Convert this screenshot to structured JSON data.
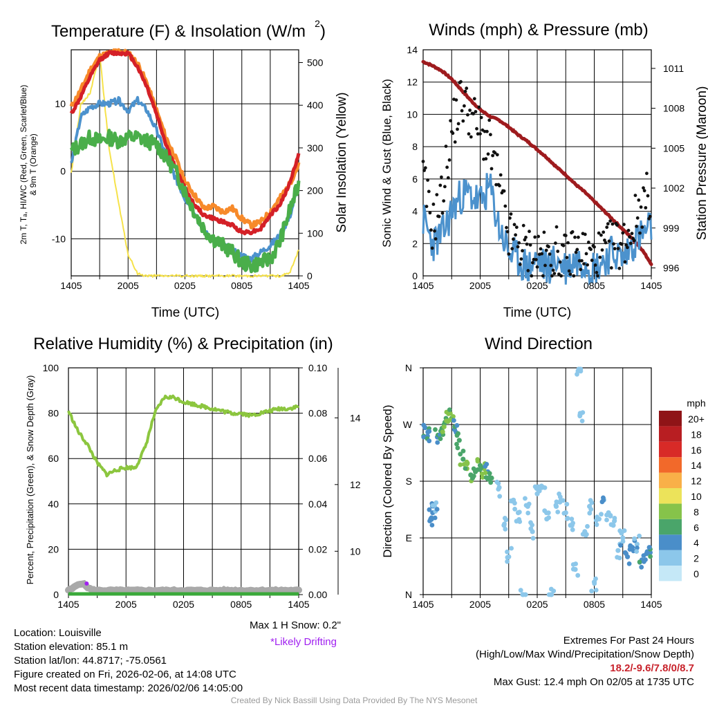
{
  "chart_data": [
    {
      "type": "line",
      "title": "Temperature (F) & Insolation (W/m",
      "title_superscript": "2",
      "title_suffix": ")",
      "xlabel": "Time (UTC)",
      "ylabel_left": "2m T, Tₐ, HI/WC (Red, Green, Scarlet/Blue)",
      "ylabel_left_line2": "& 9m T (Orange)",
      "ylabel_right": "Solar Insolation (Yellow)",
      "x_tick_labels": [
        "1405",
        "2005",
        "0205",
        "0805",
        "1405"
      ],
      "y_ticks": [
        -10,
        0,
        10
      ],
      "ylim": [
        -15.5,
        18
      ],
      "y_right_ticks": [
        0,
        100,
        200,
        300,
        400,
        500
      ],
      "y_right_lim": [
        0,
        530
      ],
      "x_hours": [
        0,
        1,
        2,
        3,
        4,
        5,
        6,
        7,
        8,
        9,
        10,
        11,
        12,
        13,
        14,
        15,
        16,
        17,
        18,
        19,
        20,
        21,
        22,
        23,
        24
      ],
      "series": [
        {
          "name": "9m T",
          "color": "#f78a2a",
          "values": [
            9.5,
            12,
            15,
            17,
            17.5,
            17.8,
            17.5,
            16,
            13,
            9,
            5,
            2,
            -1.5,
            -3.5,
            -5.5,
            -5.2,
            -6,
            -5.5,
            -7,
            -8,
            -7.5,
            -6,
            -4,
            -2,
            1
          ]
        },
        {
          "name": "2m T",
          "color": "#d42027",
          "values": [
            8.5,
            11,
            14,
            16.5,
            17.5,
            17.5,
            17.5,
            15.5,
            12.5,
            8.5,
            4,
            0.5,
            -2.5,
            -5,
            -6.5,
            -7,
            -7.5,
            -8,
            -9,
            -9,
            -8.5,
            -6.5,
            -5,
            -2,
            2.5
          ]
        },
        {
          "name": "Td",
          "color": "#4aae4a",
          "values": [
            3,
            4,
            5,
            4.5,
            5,
            4.5,
            5,
            5,
            4.5,
            4,
            2,
            0,
            -3,
            -6,
            -8.5,
            -10,
            -11,
            -12,
            -13.5,
            -14,
            -13.5,
            -13,
            -10.5,
            -6,
            -2
          ]
        },
        {
          "name": "HI/WC",
          "color": "#4c92cd",
          "values": [
            1,
            8,
            9.5,
            10,
            10,
            10.5,
            9,
            10.5,
            9,
            6,
            2.5,
            -1,
            -4,
            -6,
            -9,
            -10,
            -11,
            -11.5,
            -12.5,
            -13,
            -12,
            -11,
            -9.5,
            -7,
            -2
          ]
        },
        {
          "name": "Solar Insolation",
          "color": "#f6e24a",
          "axis": "right",
          "values": [
            240,
            400,
            430,
            520,
            300,
            170,
            50,
            5,
            0,
            0,
            0,
            0,
            0,
            0,
            0,
            0,
            0,
            0,
            0,
            0,
            0,
            0,
            0,
            5,
            60
          ]
        }
      ]
    },
    {
      "type": "line",
      "title": "Winds (mph) & Pressure (mb)",
      "xlabel": "Time (UTC)",
      "ylabel_left": "Sonic Wind & Gust (Blue, Black)",
      "ylabel_right": "Station Pressure (Maroon)",
      "x_tick_labels": [
        "1405",
        "2005",
        "0205",
        "0805",
        "1405"
      ],
      "y_ticks": [
        0,
        2,
        4,
        6,
        8,
        10,
        12,
        14
      ],
      "ylim": [
        0,
        14
      ],
      "y_right_ticks": [
        996,
        999,
        1002,
        1005,
        1008,
        1011
      ],
      "y_right_lim": [
        995.4,
        1012.4
      ],
      "x_hours": [
        0,
        1,
        2,
        3,
        4,
        5,
        6,
        7,
        8,
        9,
        10,
        11,
        12,
        13,
        14,
        15,
        16,
        17,
        18,
        19,
        20,
        21,
        22,
        23,
        24
      ],
      "series": [
        {
          "name": "Sonic Wind",
          "color": "#4c92cd",
          "values": [
            3.5,
            2,
            2.5,
            4,
            5,
            5,
            4.5,
            5.5,
            3,
            1.5,
            1,
            0.5,
            1,
            0.5,
            1,
            0.5,
            1,
            1,
            0.5,
            1,
            1.5,
            1,
            2,
            2.5,
            3
          ]
        },
        {
          "name": "Gust",
          "color": "#111111",
          "values": [
            6,
            3,
            5,
            9,
            11,
            10,
            9,
            8,
            5.5,
            2.5,
            2,
            1.5,
            1.5,
            1,
            1.5,
            1,
            1.5,
            1.5,
            1,
            1.5,
            2,
            2,
            3,
            4.5,
            5
          ]
        },
        {
          "name": "Station Pressure",
          "color": "#9e1b1e",
          "axis": "right",
          "values": [
            1011.5,
            1011.2,
            1010.8,
            1010.2,
            1009.4,
            1008.6,
            1007.9,
            1007.4,
            1007.1,
            1006.6,
            1006,
            1005.5,
            1004.9,
            1004.3,
            1003.6,
            1003,
            1002.3,
            1001.7,
            1001,
            1000.3,
            999.6,
            998.9,
            998.2,
            997.4,
            996.3
          ]
        }
      ]
    },
    {
      "type": "line",
      "title": "Relative Humidity (%) & Precipitation (in)",
      "ylabel_left": "Percent, Precipitation (Green), & Snow Depth (Gray)",
      "x_tick_labels": [
        "1405",
        "2005",
        "0205",
        "0805",
        "1405"
      ],
      "y_ticks": [
        0,
        20,
        40,
        60,
        80,
        100
      ],
      "ylim": [
        0,
        100
      ],
      "y_right_ticks": [
        "0.00",
        "0.02",
        "0.04",
        "0.06",
        "0.08",
        "0.10"
      ],
      "y_right_lim": [
        0,
        0.1
      ],
      "y_far_right_ticks": [
        10,
        12,
        14
      ],
      "x_hours": [
        0,
        1,
        2,
        3,
        4,
        5,
        6,
        7,
        8,
        9,
        10,
        11,
        12,
        13,
        14,
        15,
        16,
        17,
        18,
        19,
        20,
        21,
        22,
        23,
        24
      ],
      "series": [
        {
          "name": "Relative Humidity",
          "color": "#8cc63f",
          "values": [
            81,
            72,
            66,
            58,
            53,
            55,
            56,
            56,
            65,
            80,
            87,
            87,
            85,
            84,
            83,
            82,
            81,
            80,
            80,
            79,
            80,
            81,
            82,
            82,
            83
          ]
        },
        {
          "name": "Precipitation",
          "color": "#3aa93a",
          "values": [
            0,
            0,
            0,
            0,
            0,
            0,
            0,
            0,
            0,
            0,
            0,
            0,
            0,
            0,
            0,
            0,
            0,
            0,
            0,
            0,
            0,
            0,
            0,
            0,
            0
          ]
        },
        {
          "name": "Snow Depth",
          "color": "#a9a9a9",
          "values": [
            0,
            0,
            0,
            0,
            0,
            0,
            0,
            0,
            0,
            0,
            0,
            0,
            0,
            0,
            0,
            0,
            0,
            0,
            0,
            0,
            0,
            0,
            0,
            0,
            0
          ]
        }
      ],
      "snow_note": "Max 1 H Snow: 0.2\"",
      "drift_note": "*Likely Drifting"
    },
    {
      "type": "scatter",
      "title": "Wind Direction",
      "ylabel": "Direction (Colored By Speed)",
      "x_tick_labels": [
        "1405",
        "2005",
        "0205",
        "0805",
        "1405"
      ],
      "y_tick_labels": [
        "N",
        "E",
        "S",
        "W",
        "N"
      ],
      "ylim_degrees": [
        0,
        360
      ],
      "colorbar_title": "mph",
      "colorbar": [
        {
          "label": "0",
          "color": "#c5e8f7"
        },
        {
          "label": "2",
          "color": "#8cc7ea"
        },
        {
          "label": "4",
          "color": "#4a8ec9"
        },
        {
          "label": "6",
          "color": "#4aa56a"
        },
        {
          "label": "8",
          "color": "#86c34a"
        },
        {
          "label": "10",
          "color": "#ece35a"
        },
        {
          "label": "12",
          "color": "#f9b048"
        },
        {
          "label": "14",
          "color": "#f2692a"
        },
        {
          "label": "16",
          "color": "#d82a27"
        },
        {
          "label": "18",
          "color": "#b81e22"
        },
        {
          "label": "20+",
          "color": "#8f1417"
        }
      ],
      "points": [
        {
          "t": 0.2,
          "dir": 265,
          "spd": 4
        },
        {
          "t": 0.5,
          "dir": 258,
          "spd": 4
        },
        {
          "t": 0.8,
          "dir": 120,
          "spd": 3
        },
        {
          "t": 1.0,
          "dir": 130,
          "spd": 3
        },
        {
          "t": 1.2,
          "dir": 140,
          "spd": 2
        },
        {
          "t": 1.5,
          "dir": 250,
          "spd": 4
        },
        {
          "t": 2.0,
          "dir": 260,
          "spd": 5
        },
        {
          "t": 2.2,
          "dir": 270,
          "spd": 6
        },
        {
          "t": 2.6,
          "dir": 275,
          "spd": 7
        },
        {
          "t": 3.0,
          "dir": 280,
          "spd": 6
        },
        {
          "t": 3.3,
          "dir": 262,
          "spd": 4
        },
        {
          "t": 3.8,
          "dir": 245,
          "spd": 5
        },
        {
          "t": 4.2,
          "dir": 215,
          "spd": 6
        },
        {
          "t": 4.6,
          "dir": 200,
          "spd": 7
        },
        {
          "t": 5.0,
          "dir": 190,
          "spd": 6
        },
        {
          "t": 5.5,
          "dir": 195,
          "spd": 5
        },
        {
          "t": 6.0,
          "dir": 205,
          "spd": 6
        },
        {
          "t": 6.4,
          "dir": 200,
          "spd": 7
        },
        {
          "t": 6.8,
          "dir": 195,
          "spd": 4
        },
        {
          "t": 7.2,
          "dir": 185,
          "spd": 5
        },
        {
          "t": 8.0,
          "dir": 170,
          "spd": 1
        },
        {
          "t": 8.5,
          "dir": 110,
          "spd": 1
        },
        {
          "t": 9.0,
          "dir": 60,
          "spd": 1
        },
        {
          "t": 9.5,
          "dir": 150,
          "spd": 2
        },
        {
          "t": 10.0,
          "dir": 130,
          "spd": 1
        },
        {
          "t": 10.5,
          "dir": 0,
          "spd": 1
        },
        {
          "t": 11.0,
          "dir": 140,
          "spd": 1
        },
        {
          "t": 11.5,
          "dir": 100,
          "spd": 1
        },
        {
          "t": 12.0,
          "dir": 160,
          "spd": 1
        },
        {
          "t": 12.5,
          "dir": 170,
          "spd": 1
        },
        {
          "t": 13.0,
          "dir": 120,
          "spd": 1
        },
        {
          "t": 13.5,
          "dir": 0,
          "spd": 1
        },
        {
          "t": 14.0,
          "dir": 140,
          "spd": 1
        },
        {
          "t": 14.5,
          "dir": 150,
          "spd": 1
        },
        {
          "t": 15.0,
          "dir": 130,
          "spd": 1
        },
        {
          "t": 15.5,
          "dir": 110,
          "spd": 1
        },
        {
          "t": 16.0,
          "dir": 40,
          "spd": 1
        },
        {
          "t": 16.3,
          "dir": 355,
          "spd": 1
        },
        {
          "t": 16.5,
          "dir": 285,
          "spd": 1
        },
        {
          "t": 17.0,
          "dir": 100,
          "spd": 1
        },
        {
          "t": 17.5,
          "dir": 140,
          "spd": 1
        },
        {
          "t": 18.0,
          "dir": 20,
          "spd": 1
        },
        {
          "t": 18.5,
          "dir": 120,
          "spd": 1
        },
        {
          "t": 19.0,
          "dir": 150,
          "spd": 2
        },
        {
          "t": 19.5,
          "dir": 130,
          "spd": 2
        },
        {
          "t": 20.0,
          "dir": 110,
          "spd": 1
        },
        {
          "t": 20.5,
          "dir": 70,
          "spd": 2
        },
        {
          "t": 21.0,
          "dir": 90,
          "spd": 1
        },
        {
          "t": 21.5,
          "dir": 60,
          "spd": 3
        },
        {
          "t": 22.0,
          "dir": 75,
          "spd": 3
        },
        {
          "t": 22.5,
          "dir": 80,
          "spd": 2
        },
        {
          "t": 23.0,
          "dir": 55,
          "spd": 4
        },
        {
          "t": 23.5,
          "dir": 65,
          "spd": 3
        },
        {
          "t": 23.8,
          "dir": 75,
          "spd": 4
        }
      ]
    }
  ],
  "footer": {
    "location": "Location: Louisville",
    "elevation": "Station elevation: 85.1 m",
    "latlon": "Station lat/lon: 44.8717; -75.0561",
    "created": "Figure created on Fri, 2026-02-06, at 14:08 UTC",
    "recent": "Most recent data timestamp: 2026/02/06 14:05:00",
    "extremes_title": "Extremes For Past 24 Hours",
    "extremes_legend": "(High/Low/Max Wind/Precipitation/Snow Depth)",
    "extremes_values": "18.2/-9.6/7.8/0/8.7",
    "max_gust": "Max Gust: 12.4 mph On 02/05 at 1735 UTC",
    "credit": "Created By Nick Bassill Using Data Provided By The NYS Mesonet"
  }
}
